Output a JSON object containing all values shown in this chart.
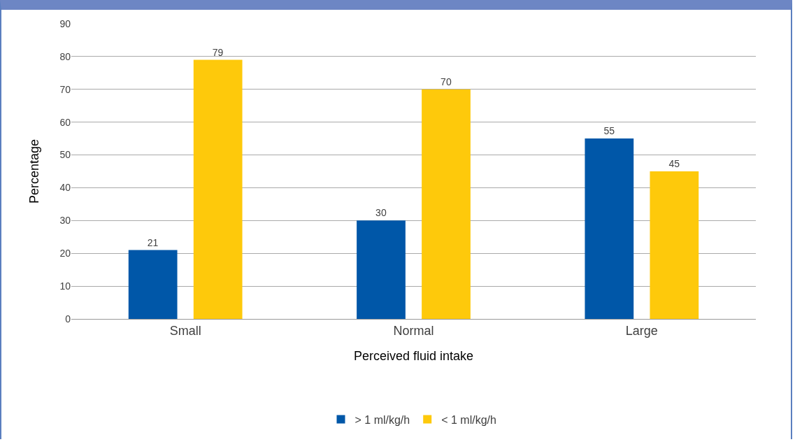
{
  "chart_data": {
    "type": "bar",
    "xlabel": "Perceived fluid intake",
    "ylabel": "Percentage",
    "categories": [
      "Small",
      "Normal",
      "Large"
    ],
    "series": [
      {
        "name": "> 1 ml/kg/h",
        "color": "#0057a8",
        "values": [
          21,
          30,
          55
        ]
      },
      {
        "name": "< 1 ml/kg/h",
        "color": "#fec90b",
        "values": [
          79,
          70,
          45
        ]
      }
    ],
    "ylim": [
      0,
      90
    ],
    "yticks": [
      0,
      10,
      20,
      30,
      40,
      50,
      60,
      70,
      80,
      90
    ],
    "grid": "y",
    "legend": "bottom",
    "data_labels": true
  }
}
